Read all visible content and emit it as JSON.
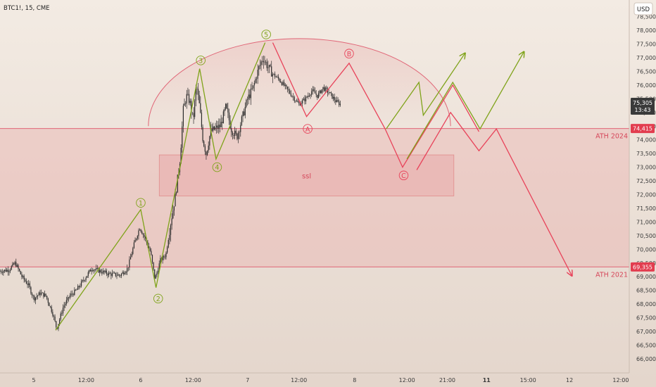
{
  "header": {
    "symbol": "BTC1!, 15, CME"
  },
  "currency_button": "USD",
  "colors": {
    "bg_top": "#f3ebe3",
    "bg_bottom": "#e4d6cc",
    "candle": "#2b2b2b",
    "bull_wave": "#7fa31a",
    "bear_wave": "#e8435a",
    "zone_fill": "#e8a3a3",
    "level_line": "#e06677",
    "tag_bg": "#e23d4f"
  },
  "chart_data": {
    "type": "line",
    "title": "",
    "ylim": [
      65800,
      78800
    ],
    "xlim": [
      0,
      12
    ],
    "y_ticks": [
      66000,
      66500,
      67000,
      67500,
      68000,
      68500,
      69000,
      69500,
      70000,
      70500,
      71000,
      71500,
      72000,
      72500,
      73000,
      73500,
      74000,
      74500,
      75000,
      75500,
      76000,
      76500,
      77000,
      77500,
      78000,
      78500
    ],
    "x_ticks": [
      {
        "x": 0.31,
        "label": "5"
      },
      {
        "x": 0.79,
        "label": "12:00"
      },
      {
        "x": 1.29,
        "label": "6"
      },
      {
        "x": 1.77,
        "label": "12:00"
      },
      {
        "x": 2.27,
        "label": "7"
      },
      {
        "x": 2.74,
        "label": "12:00"
      },
      {
        "x": 3.25,
        "label": "8"
      },
      {
        "x": 3.73,
        "label": "12:00"
      },
      {
        "x": 4.1,
        "label": "21:00"
      },
      {
        "x": 4.46,
        "label": "11"
      },
      {
        "x": 4.84,
        "label": "15:00"
      },
      {
        "x": 5.22,
        "label": "12"
      },
      {
        "x": 5.69,
        "label": "12:00"
      }
    ],
    "price_anchors": [
      [
        0.0,
        69200
      ],
      [
        0.08,
        69250
      ],
      [
        0.14,
        69500
      ],
      [
        0.2,
        69000
      ],
      [
        0.26,
        68700
      ],
      [
        0.31,
        68200
      ],
      [
        0.37,
        68400
      ],
      [
        0.42,
        68300
      ],
      [
        0.48,
        67700
      ],
      [
        0.52,
        67100
      ],
      [
        0.58,
        67900
      ],
      [
        0.64,
        68300
      ],
      [
        0.7,
        68500
      ],
      [
        0.77,
        68900
      ],
      [
        0.84,
        69300
      ],
      [
        0.92,
        69200
      ],
      [
        1.0,
        69100
      ],
      [
        1.1,
        69050
      ],
      [
        1.17,
        69300
      ],
      [
        1.23,
        70200
      ],
      [
        1.28,
        70800
      ],
      [
        1.33,
        70400
      ],
      [
        1.38,
        69900
      ],
      [
        1.42,
        68900
      ],
      [
        1.47,
        69600
      ],
      [
        1.52,
        69800
      ],
      [
        1.57,
        71100
      ],
      [
        1.61,
        72000
      ],
      [
        1.65,
        73300
      ],
      [
        1.68,
        75100
      ],
      [
        1.71,
        75600
      ],
      [
        1.74,
        75400
      ],
      [
        1.77,
        74700
      ],
      [
        1.8,
        76000
      ],
      [
        1.83,
        75200
      ],
      [
        1.86,
        74000
      ],
      [
        1.89,
        73500
      ],
      [
        1.93,
        74300
      ],
      [
        1.97,
        74400
      ],
      [
        2.02,
        74500
      ],
      [
        2.07,
        75200
      ],
      [
        2.12,
        74400
      ],
      [
        2.17,
        74100
      ],
      [
        2.22,
        74800
      ],
      [
        2.27,
        75500
      ],
      [
        2.32,
        75900
      ],
      [
        2.37,
        76600
      ],
      [
        2.41,
        77000
      ],
      [
        2.45,
        76700
      ],
      [
        2.5,
        76400
      ],
      [
        2.56,
        76200
      ],
      [
        2.62,
        75900
      ],
      [
        2.68,
        75600
      ],
      [
        2.74,
        75300
      ],
      [
        2.8,
        75500
      ],
      [
        2.86,
        75800
      ],
      [
        2.91,
        75600
      ],
      [
        2.96,
        75900
      ],
      [
        3.02,
        75700
      ],
      [
        3.08,
        75400
      ],
      [
        3.12,
        75300
      ]
    ],
    "levels": [
      {
        "name": "ATH 2024",
        "value": 74415,
        "tag": "74,415"
      },
      {
        "name": "ATH 2021",
        "value": 69355,
        "tag": "69,355"
      }
    ],
    "zones": [
      {
        "label": "",
        "x_range": [
          0.0,
          6.0
        ],
        "y_range": [
          69355,
          74415
        ]
      },
      {
        "label": "ssl",
        "x_range": [
          1.46,
          4.16
        ],
        "y_range": [
          71950,
          73450
        ]
      }
    ],
    "current_price": {
      "value": 75305,
      "label": "75,305",
      "timer": "13:43"
    },
    "series": [
      {
        "color": "bull",
        "values": [
          [
            0.51,
            67050
          ],
          [
            1.29,
            71450
          ],
          [
            1.43,
            68600
          ],
          [
            1.83,
            76600
          ],
          [
            1.98,
            73300
          ],
          [
            2.43,
            77550
          ]
        ]
      },
      {
        "color": "bear",
        "values": [
          [
            2.5,
            77550
          ],
          [
            2.81,
            74850
          ],
          [
            3.2,
            76800
          ],
          [
            3.53,
            74400
          ],
          [
            3.69,
            73000
          ],
          [
            4.15,
            76000
          ],
          [
            4.39,
            74300
          ]
        ]
      },
      {
        "color": "bear",
        "values": [
          [
            3.82,
            72900
          ],
          [
            4.13,
            75000
          ],
          [
            4.39,
            73600
          ],
          [
            4.55,
            74400
          ],
          [
            5.24,
            69050
          ]
        ]
      },
      {
        "color": "bull",
        "values": [
          [
            3.54,
            74400
          ],
          [
            3.84,
            76100
          ],
          [
            3.88,
            74900
          ],
          [
            4.26,
            77150
          ]
        ]
      },
      {
        "color": "bull",
        "values": [
          [
            3.73,
            73300
          ],
          [
            4.15,
            76100
          ],
          [
            4.4,
            74400
          ],
          [
            4.8,
            77200
          ]
        ]
      }
    ],
    "arc": {
      "x_range": [
        1.36,
        4.13
      ],
      "peak": 77700,
      "base": 74500
    },
    "wave_labels": [
      {
        "text": "1",
        "x": 1.29,
        "y": 71700,
        "color": "bull"
      },
      {
        "text": "2",
        "x": 1.45,
        "y": 68200,
        "color": "bull"
      },
      {
        "text": "3",
        "x": 1.84,
        "y": 76900,
        "color": "bull"
      },
      {
        "text": "4",
        "x": 1.99,
        "y": 73000,
        "color": "bull"
      },
      {
        "text": "5",
        "x": 2.44,
        "y": 77850,
        "color": "bull"
      },
      {
        "text": "A",
        "x": 2.82,
        "y": 74400,
        "color": "bear"
      },
      {
        "text": "B",
        "x": 3.2,
        "y": 77150,
        "color": "bear"
      },
      {
        "text": "C",
        "x": 3.7,
        "y": 72700,
        "color": "bear"
      }
    ]
  }
}
